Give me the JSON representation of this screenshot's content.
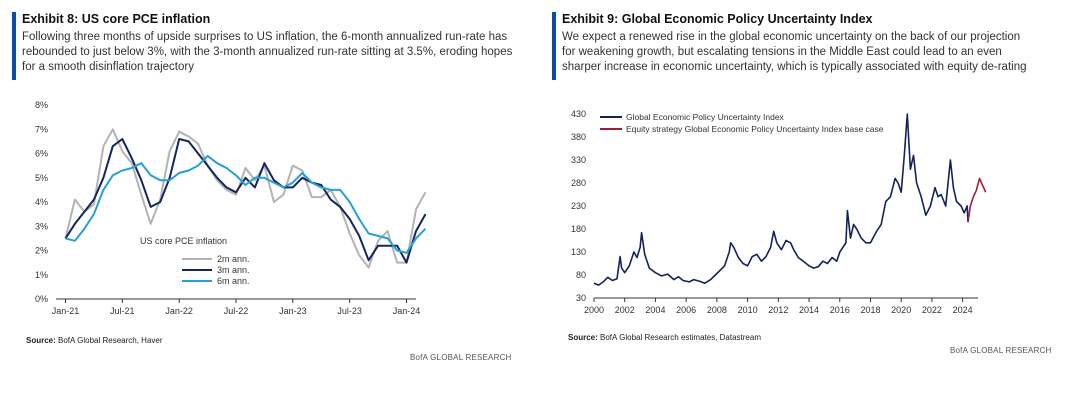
{
  "exhibit8": {
    "title": "Exhibit 8: US core PCE inflation",
    "subtitle": "Following three months of upside surprises to US inflation, the 6-month annualized run-rate has rebounded to just below 3%, with the 3-month annualized run-rate sitting at 3.5%, eroding hopes for a smooth disinflation trajectory",
    "source_label": "Source:",
    "source_text": " BofA Global Research, Haver",
    "brand": "BofA GLOBAL RESEARCH"
  },
  "exhibit9": {
    "title": "Exhibit 9: Global Economic Policy Uncertainty Index",
    "subtitle": "We expect a renewed rise in the global economic uncertainty on the back of our projection for weakening growth, but escalating tensions in the Middle East could lead to an even sharper increase in economic uncertainty, which is typically associated with equity de-rating",
    "source_label": "Source:",
    "source_text": " BofA Global Research estimates, Datastream",
    "brand": "BofA GLOBAL RESEARCH"
  },
  "colors": {
    "gray_2m": "#b3b3b3",
    "navy_3m": "#15265e",
    "blue_6m": "#27a0d4",
    "index_navy": "#13235c",
    "base_case_red": "#a51c36",
    "accent": "#0a4ea8"
  },
  "chart_data": [
    {
      "type": "line",
      "legend_title": "US core PCE inflation",
      "legend_position": "lower-left",
      "x_ticks": [
        "Jan-21",
        "Jul-21",
        "Jan-22",
        "Jul-22",
        "Jan-23",
        "Jul-23",
        "Jan-24"
      ],
      "y_ticks": [
        "0%",
        "1%",
        "2%",
        "3%",
        "4%",
        "5%",
        "6%",
        "7%",
        "8%"
      ],
      "ylim": [
        0,
        8
      ],
      "x_months_range": [
        "2020-12",
        "2024-02"
      ],
      "grid": false,
      "series": [
        {
          "name": "2m ann.",
          "color": "gray_2m",
          "points": [
            [
              "2021-01",
              2.5
            ],
            [
              "2021-02",
              4.1
            ],
            [
              "2021-03",
              3.6
            ],
            [
              "2021-04",
              3.9
            ],
            [
              "2021-05",
              6.3
            ],
            [
              "2021-06",
              7.0
            ],
            [
              "2021-07",
              6.1
            ],
            [
              "2021-08",
              5.6
            ],
            [
              "2021-09",
              4.3
            ],
            [
              "2021-10",
              3.1
            ],
            [
              "2021-11",
              4.1
            ],
            [
              "2021-12",
              6.1
            ],
            [
              "2022-01",
              6.9
            ],
            [
              "2022-02",
              6.7
            ],
            [
              "2022-03",
              6.4
            ],
            [
              "2022-04",
              5.5
            ],
            [
              "2022-05",
              4.9
            ],
            [
              "2022-06",
              4.5
            ],
            [
              "2022-07",
              4.3
            ],
            [
              "2022-08",
              5.4
            ],
            [
              "2022-09",
              4.9
            ],
            [
              "2022-10",
              5.5
            ],
            [
              "2022-11",
              4.0
            ],
            [
              "2022-12",
              4.3
            ],
            [
              "2023-01",
              5.5
            ],
            [
              "2023-02",
              5.3
            ],
            [
              "2023-03",
              4.2
            ],
            [
              "2023-04",
              4.2
            ],
            [
              "2023-05",
              4.5
            ],
            [
              "2023-06",
              3.8
            ],
            [
              "2023-07",
              2.7
            ],
            [
              "2023-08",
              1.8
            ],
            [
              "2023-09",
              1.3
            ],
            [
              "2023-10",
              2.4
            ],
            [
              "2023-11",
              2.8
            ],
            [
              "2023-12",
              1.5
            ],
            [
              "2024-01",
              1.5
            ],
            [
              "2024-02",
              3.7
            ],
            [
              "2024-03",
              4.4
            ]
          ]
        },
        {
          "name": "3m ann.",
          "color": "navy_3m",
          "points": [
            [
              "2021-01",
              2.5
            ],
            [
              "2021-02",
              3.1
            ],
            [
              "2021-03",
              3.6
            ],
            [
              "2021-04",
              4.1
            ],
            [
              "2021-05",
              5.0
            ],
            [
              "2021-06",
              6.3
            ],
            [
              "2021-07",
              6.6
            ],
            [
              "2021-08",
              5.8
            ],
            [
              "2021-09",
              4.9
            ],
            [
              "2021-10",
              3.8
            ],
            [
              "2021-11",
              4.0
            ],
            [
              "2021-12",
              5.0
            ],
            [
              "2022-01",
              6.6
            ],
            [
              "2022-02",
              6.5
            ],
            [
              "2022-03",
              6.0
            ],
            [
              "2022-04",
              5.5
            ],
            [
              "2022-05",
              5.0
            ],
            [
              "2022-06",
              4.6
            ],
            [
              "2022-07",
              4.4
            ],
            [
              "2022-08",
              5.0
            ],
            [
              "2022-09",
              4.6
            ],
            [
              "2022-10",
              5.6
            ],
            [
              "2022-11",
              4.9
            ],
            [
              "2022-12",
              4.6
            ],
            [
              "2023-01",
              4.6
            ],
            [
              "2023-02",
              5.0
            ],
            [
              "2023-03",
              4.8
            ],
            [
              "2023-04",
              4.7
            ],
            [
              "2023-05",
              4.1
            ],
            [
              "2023-06",
              3.8
            ],
            [
              "2023-07",
              3.3
            ],
            [
              "2023-08",
              2.6
            ],
            [
              "2023-09",
              1.6
            ],
            [
              "2023-10",
              2.2
            ],
            [
              "2023-11",
              2.2
            ],
            [
              "2023-12",
              2.2
            ],
            [
              "2024-01",
              1.5
            ],
            [
              "2024-02",
              2.8
            ],
            [
              "2024-03",
              3.5
            ]
          ]
        },
        {
          "name": "6m ann.",
          "color": "blue_6m",
          "points": [
            [
              "2021-01",
              2.5
            ],
            [
              "2021-02",
              2.4
            ],
            [
              "2021-03",
              2.9
            ],
            [
              "2021-04",
              3.5
            ],
            [
              "2021-05",
              4.5
            ],
            [
              "2021-06",
              5.1
            ],
            [
              "2021-07",
              5.3
            ],
            [
              "2021-08",
              5.4
            ],
            [
              "2021-09",
              5.6
            ],
            [
              "2021-10",
              5.1
            ],
            [
              "2021-11",
              4.9
            ],
            [
              "2021-12",
              4.9
            ],
            [
              "2022-01",
              5.2
            ],
            [
              "2022-02",
              5.3
            ],
            [
              "2022-03",
              5.5
            ],
            [
              "2022-04",
              5.9
            ],
            [
              "2022-05",
              5.6
            ],
            [
              "2022-06",
              5.4
            ],
            [
              "2022-07",
              5.1
            ],
            [
              "2022-08",
              4.7
            ],
            [
              "2022-09",
              5.0
            ],
            [
              "2022-10",
              5.0
            ],
            [
              "2022-11",
              4.8
            ],
            [
              "2022-12",
              4.6
            ],
            [
              "2023-01",
              4.8
            ],
            [
              "2023-02",
              5.2
            ],
            [
              "2023-03",
              4.8
            ],
            [
              "2023-04",
              4.6
            ],
            [
              "2023-05",
              4.5
            ],
            [
              "2023-06",
              4.5
            ],
            [
              "2023-07",
              4.0
            ],
            [
              "2023-08",
              3.3
            ],
            [
              "2023-09",
              2.7
            ],
            [
              "2023-10",
              2.6
            ],
            [
              "2023-11",
              2.5
            ],
            [
              "2023-12",
              2.0
            ],
            [
              "2024-01",
              1.9
            ],
            [
              "2024-02",
              2.5
            ],
            [
              "2024-03",
              2.9
            ]
          ]
        }
      ]
    },
    {
      "type": "line",
      "legend_position": "top-left",
      "x_ticks": [
        "2000",
        "2002",
        "2004",
        "2006",
        "2008",
        "2010",
        "2012",
        "2014",
        "2016",
        "2018",
        "2020",
        "2022",
        "2024"
      ],
      "y_ticks": [
        "30",
        "80",
        "130",
        "180",
        "230",
        "280",
        "330",
        "380",
        "430"
      ],
      "ylim": [
        30,
        430
      ],
      "xlim": [
        2000,
        2025
      ],
      "grid": false,
      "series": [
        {
          "name": "Global Economic Policy Uncertainty Index",
          "color": "index_navy",
          "points": [
            [
              2000.0,
              62
            ],
            [
              2000.3,
              58
            ],
            [
              2000.6,
              65
            ],
            [
              2000.9,
              75
            ],
            [
              2001.2,
              68
            ],
            [
              2001.5,
              72
            ],
            [
              2001.7,
              120
            ],
            [
              2001.8,
              95
            ],
            [
              2002.0,
              85
            ],
            [
              2002.3,
              100
            ],
            [
              2002.6,
              130
            ],
            [
              2002.8,
              118
            ],
            [
              2003.0,
              140
            ],
            [
              2003.1,
              172
            ],
            [
              2003.3,
              125
            ],
            [
              2003.6,
              95
            ],
            [
              2004.0,
              85
            ],
            [
              2004.4,
              78
            ],
            [
              2004.8,
              82
            ],
            [
              2005.2,
              70
            ],
            [
              2005.5,
              76
            ],
            [
              2005.8,
              68
            ],
            [
              2006.2,
              65
            ],
            [
              2006.5,
              70
            ],
            [
              2006.9,
              66
            ],
            [
              2007.2,
              62
            ],
            [
              2007.6,
              70
            ],
            [
              2007.9,
              80
            ],
            [
              2008.2,
              90
            ],
            [
              2008.5,
              100
            ],
            [
              2008.8,
              130
            ],
            [
              2008.9,
              150
            ],
            [
              2009.1,
              140
            ],
            [
              2009.4,
              118
            ],
            [
              2009.7,
              105
            ],
            [
              2010.0,
              100
            ],
            [
              2010.3,
              120
            ],
            [
              2010.6,
              125
            ],
            [
              2010.9,
              110
            ],
            [
              2011.2,
              120
            ],
            [
              2011.5,
              140
            ],
            [
              2011.7,
              175
            ],
            [
              2011.9,
              150
            ],
            [
              2012.2,
              135
            ],
            [
              2012.5,
              155
            ],
            [
              2012.8,
              150
            ],
            [
              2013.0,
              135
            ],
            [
              2013.3,
              118
            ],
            [
              2013.7,
              108
            ],
            [
              2014.0,
              100
            ],
            [
              2014.3,
              95
            ],
            [
              2014.6,
              98
            ],
            [
              2014.9,
              110
            ],
            [
              2015.2,
              105
            ],
            [
              2015.5,
              118
            ],
            [
              2015.8,
              110
            ],
            [
              2016.0,
              130
            ],
            [
              2016.4,
              150
            ],
            [
              2016.5,
              220
            ],
            [
              2016.7,
              160
            ],
            [
              2016.9,
              190
            ],
            [
              2017.1,
              180
            ],
            [
              2017.4,
              160
            ],
            [
              2017.7,
              150
            ],
            [
              2018.0,
              150
            ],
            [
              2018.4,
              175
            ],
            [
              2018.7,
              190
            ],
            [
              2019.0,
              240
            ],
            [
              2019.3,
              250
            ],
            [
              2019.6,
              290
            ],
            [
              2019.8,
              280
            ],
            [
              2020.0,
              260
            ],
            [
              2020.2,
              340
            ],
            [
              2020.4,
              430
            ],
            [
              2020.6,
              310
            ],
            [
              2020.8,
              340
            ],
            [
              2021.0,
              280
            ],
            [
              2021.3,
              250
            ],
            [
              2021.6,
              210
            ],
            [
              2021.9,
              230
            ],
            [
              2022.2,
              270
            ],
            [
              2022.4,
              250
            ],
            [
              2022.6,
              255
            ],
            [
              2022.9,
              230
            ],
            [
              2023.2,
              330
            ],
            [
              2023.4,
              270
            ],
            [
              2023.6,
              240
            ],
            [
              2023.9,
              230
            ],
            [
              2024.1,
              215
            ],
            [
              2024.3,
              230
            ],
            [
              2024.35,
              195
            ]
          ]
        },
        {
          "name": "Equity strategy Global Economic Policy Uncertainty Index base case",
          "color": "base_case_red",
          "points": [
            [
              2024.35,
              195
            ],
            [
              2024.5,
              230
            ],
            [
              2024.7,
              250
            ],
            [
              2024.9,
              265
            ],
            [
              2025.1,
              290
            ],
            [
              2025.3,
              275
            ],
            [
              2025.5,
              260
            ]
          ]
        }
      ]
    }
  ]
}
